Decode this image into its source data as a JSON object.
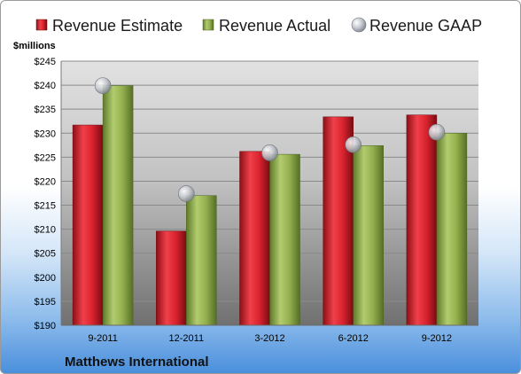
{
  "chart_data": {
    "type": "bar",
    "unit_label": "$millions",
    "footer": "Matthews International",
    "categories": [
      "9-2011",
      "12-2011",
      "3-2012",
      "6-2012",
      "9-2012"
    ],
    "series": [
      {
        "name": "Revenue Estimate",
        "kind": "bar",
        "color": "#cc1f2a",
        "values": [
          231.7,
          209.6,
          226.2,
          233.4,
          233.8
        ]
      },
      {
        "name": "Revenue Actual",
        "kind": "bar",
        "color": "#8aa64a",
        "values": [
          239.9,
          217.0,
          225.6,
          227.4,
          230.0
        ]
      },
      {
        "name": "Revenue GAAP",
        "kind": "point",
        "color": "#b8bcc4",
        "values": [
          239.9,
          217.4,
          225.9,
          227.6,
          230.2
        ]
      }
    ],
    "y_ticks": [
      "$190",
      "$195",
      "$200",
      "$205",
      "$210",
      "$215",
      "$220",
      "$225",
      "$230",
      "$235",
      "$240",
      "$245"
    ],
    "ylim": [
      190,
      245
    ],
    "y_step": 5,
    "grid": true,
    "legend_position": "top"
  }
}
